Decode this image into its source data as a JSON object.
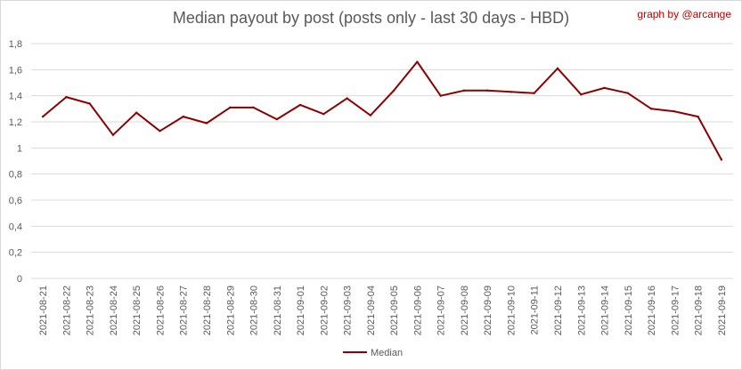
{
  "header": {
    "title": "Median payout by post (posts only - last 30 days - HBD)",
    "credit": "graph by @arcange"
  },
  "chart_data": {
    "type": "line",
    "title": "Median payout by post (posts only - last 30 days - HBD)",
    "xlabel": "",
    "ylabel": "",
    "ylim": [
      0,
      1.8
    ],
    "y_ticks": [
      "0",
      "0,2",
      "0,4",
      "0,6",
      "0,8",
      "1",
      "1,2",
      "1,4",
      "1,6",
      "1,8"
    ],
    "grid": true,
    "legend_position": "bottom",
    "categories": [
      "2021-08-21",
      "2021-08-22",
      "2021-08-23",
      "2021-08-24",
      "2021-08-25",
      "2021-08-26",
      "2021-08-27",
      "2021-08-28",
      "2021-08-29",
      "2021-08-30",
      "2021-08-31",
      "2021-09-01",
      "2021-09-02",
      "2021-09-03",
      "2021-09-04",
      "2021-09-05",
      "2021-09-06",
      "2021-09-07",
      "2021-09-08",
      "2021-09-09",
      "2021-09-10",
      "2021-09-11",
      "2021-09-12",
      "2021-09-13",
      "2021-09-14",
      "2021-09-15",
      "2021-09-16",
      "2021-09-17",
      "2021-09-18",
      "2021-09-19"
    ],
    "series": [
      {
        "name": "Median",
        "color": "#8b0000",
        "values": [
          1.24,
          1.39,
          1.34,
          1.1,
          1.27,
          1.13,
          1.24,
          1.19,
          1.31,
          1.31,
          1.22,
          1.33,
          1.26,
          1.38,
          1.25,
          1.44,
          1.66,
          1.4,
          1.44,
          1.44,
          1.43,
          1.42,
          1.61,
          1.41,
          1.46,
          1.42,
          1.3,
          1.28,
          1.24,
          0.91
        ]
      }
    ]
  }
}
